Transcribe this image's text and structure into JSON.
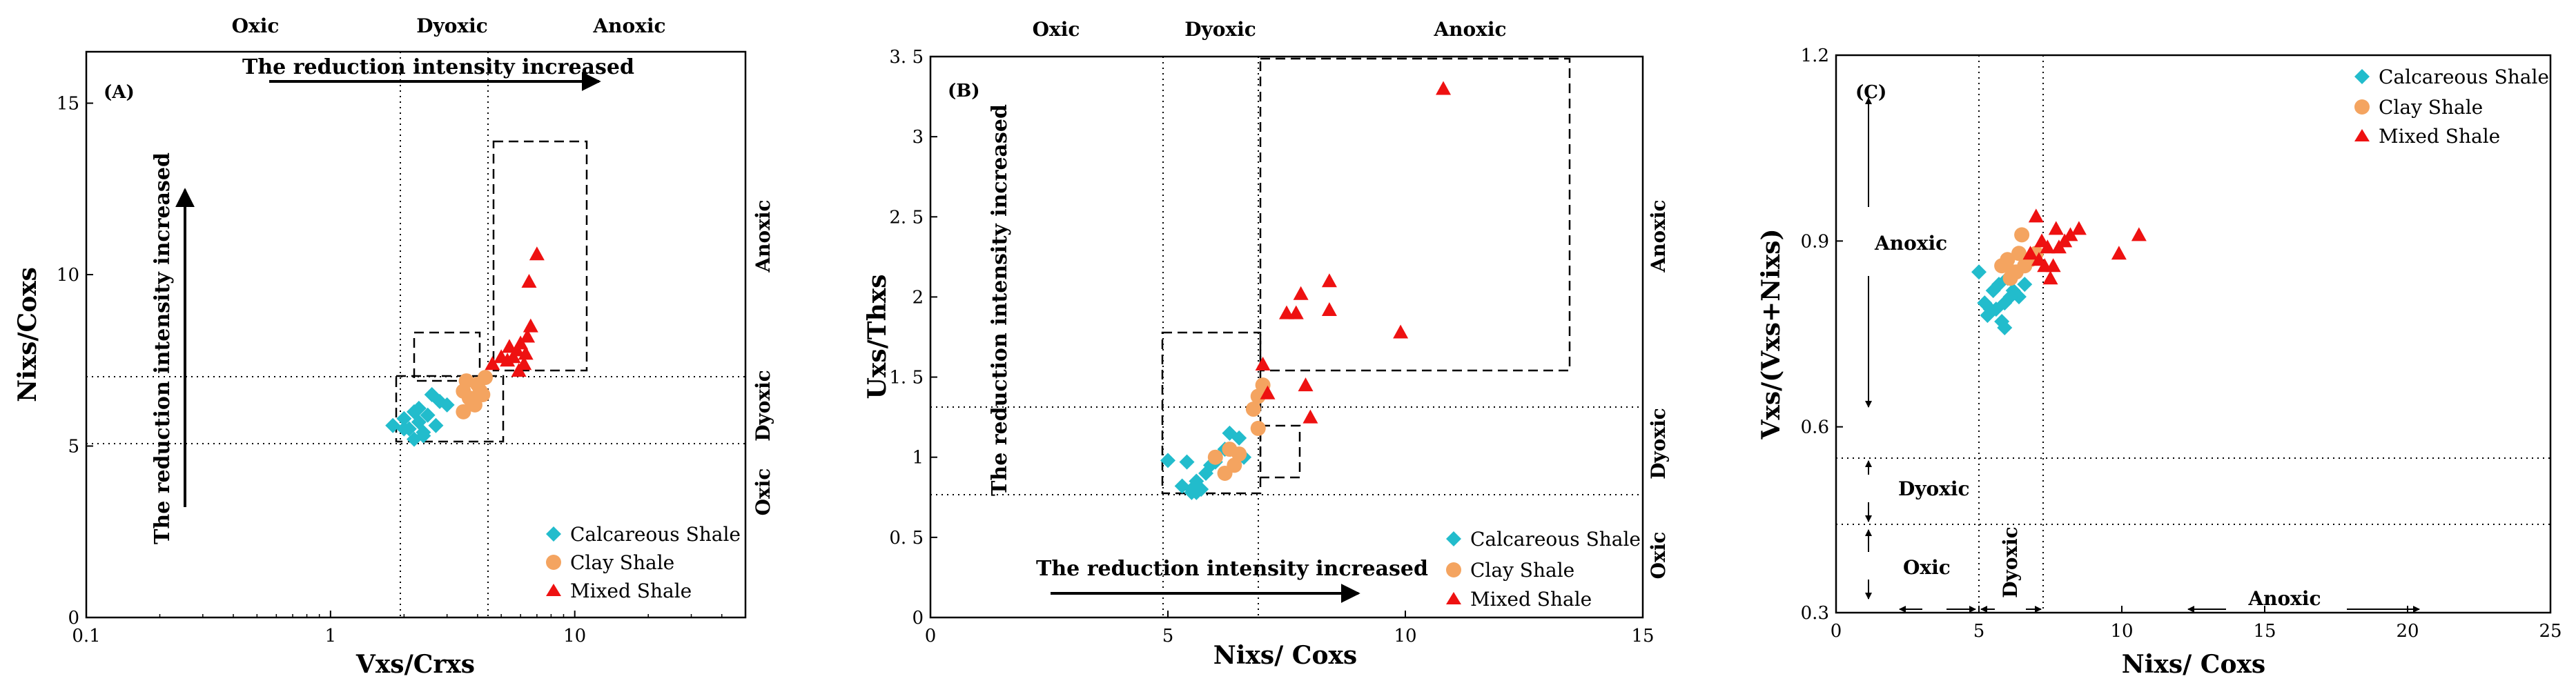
{
  "colors": {
    "calcareous": "#22bccc",
    "clay": "#f4a460",
    "mixed": "#ee1111",
    "frame": "#000000"
  },
  "chart_data": [
    {
      "type": "scatter",
      "panel_label": "(A)",
      "xscale": "log",
      "xlim": [
        0.1,
        50
      ],
      "ylim": [
        0,
        16.5
      ],
      "xlabel": "Vxs/Crxs",
      "ylabel": "Nixs/Coxs",
      "xticks": [
        0.1,
        1,
        10
      ],
      "xtick_labels": [
        "0.1",
        "1",
        "10"
      ],
      "yticks": [
        0,
        5,
        10,
        15
      ],
      "ytick_labels": [
        "0",
        "5",
        "10",
        "15"
      ],
      "top_zone_labels": [
        "Oxic",
        "Dyoxic",
        "Anoxic"
      ],
      "right_zone_labels": [
        "Anoxic",
        "Dyoxic",
        "Oxic"
      ],
      "arrow_text_horizontal": "The reduction intensity increased",
      "arrow_text_vertical": "The reduction intensity increased",
      "legend": [
        "Calcareous Shale",
        "Clay Shale",
        "Mixed Shale"
      ],
      "series": [
        {
          "name": "Calcareous Shale",
          "marker": "diamond",
          "x": [
            1.8,
            2.0,
            2.1,
            2.2,
            2.3,
            2.4,
            2.5,
            2.6,
            2.8,
            3.0,
            2.2,
            2.4,
            2.7,
            2.0,
            2.3
          ],
          "y": [
            5.6,
            5.8,
            5.5,
            6.0,
            5.7,
            5.4,
            5.9,
            6.5,
            6.3,
            6.2,
            5.2,
            5.3,
            5.6,
            5.5,
            6.1
          ]
        },
        {
          "name": "Clay Shale",
          "marker": "circle",
          "x": [
            3.5,
            3.8,
            4.0,
            4.2,
            3.6,
            3.9,
            4.1,
            3.7,
            4.3,
            3.5
          ],
          "y": [
            6.0,
            6.3,
            6.8,
            6.5,
            6.9,
            6.2,
            6.6,
            6.4,
            7.0,
            6.6
          ]
        },
        {
          "name": "Mixed Shale",
          "marker": "triangle",
          "x": [
            4.6,
            5.0,
            5.3,
            5.6,
            5.8,
            6.0,
            6.2,
            6.4,
            6.6,
            6.5,
            7.0,
            5.4,
            5.9,
            6.3
          ],
          "y": [
            7.4,
            7.6,
            7.5,
            7.6,
            7.8,
            8.0,
            7.4,
            8.2,
            8.5,
            9.8,
            10.6,
            7.9,
            7.2,
            7.7
          ]
        }
      ]
    },
    {
      "type": "scatter",
      "panel_label": "(B)",
      "xlim": [
        0,
        15
      ],
      "ylim": [
        0,
        3.5
      ],
      "xlabel": "Nixs/ Coxs",
      "ylabel": "Uxs/Thxs",
      "xticks": [
        0,
        5,
        10,
        15
      ],
      "xtick_labels": [
        "0",
        "5",
        "10",
        "15"
      ],
      "yticks": [
        0,
        0.5,
        1,
        1.5,
        2,
        2.5,
        3,
        3.5
      ],
      "ytick_labels": [
        "0",
        "0. 5",
        "1",
        "1. 5",
        "2",
        "2. 5",
        "3",
        "3. 5"
      ],
      "top_zone_labels": [
        "Oxic",
        "Dyoxic",
        "Anoxic"
      ],
      "right_zone_labels": [
        "Anoxic",
        "Dyoxic",
        "Oxic"
      ],
      "arrow_text_horizontal": "The reduction intensity increased",
      "arrow_text_vertical": "The reduction intensity increased",
      "legend": [
        "Calcareous Shale",
        "Clay Shale",
        "Mixed Shale"
      ],
      "series": [
        {
          "name": "Calcareous Shale",
          "marker": "diamond",
          "x": [
            5.0,
            5.3,
            5.4,
            5.5,
            5.6,
            5.7,
            5.8,
            5.9,
            6.0,
            6.2,
            6.3,
            6.5,
            6.6,
            5.6,
            5.5
          ],
          "y": [
            0.98,
            0.82,
            0.97,
            0.78,
            0.85,
            0.8,
            0.9,
            0.95,
            0.97,
            1.05,
            1.15,
            1.12,
            1.0,
            0.78,
            0.8
          ]
        },
        {
          "name": "Clay Shale",
          "marker": "circle",
          "x": [
            6.0,
            6.2,
            6.4,
            6.5,
            6.8,
            6.9,
            7.0,
            6.3,
            6.9
          ],
          "y": [
            1.0,
            0.9,
            0.95,
            1.02,
            1.3,
            1.18,
            1.45,
            1.05,
            1.38
          ]
        },
        {
          "name": "Mixed Shale",
          "marker": "triangle",
          "x": [
            7.0,
            7.1,
            7.5,
            7.7,
            7.9,
            8.0,
            8.4,
            8.4,
            9.9,
            10.8,
            7.8
          ],
          "y": [
            1.58,
            1.4,
            1.9,
            1.9,
            1.45,
            1.25,
            2.1,
            1.92,
            1.78,
            3.3,
            2.02
          ]
        }
      ]
    },
    {
      "type": "scatter",
      "panel_label": "(C)",
      "xlim": [
        0,
        25
      ],
      "ylim": [
        0.3,
        1.2
      ],
      "xlabel": "Nixs/ Coxs",
      "ylabel": "Vxs/(Vxs+Nixs)",
      "xticks": [
        0,
        5,
        10,
        15,
        20,
        25
      ],
      "xtick_labels": [
        "0",
        "5",
        "10",
        "15",
        "20",
        "25"
      ],
      "yticks": [
        0.3,
        0.6,
        0.9,
        1.2
      ],
      "ytick_labels": [
        "0.3",
        "0.6",
        "0.9",
        "1.2"
      ],
      "zone_labels": [
        "Anoxic",
        "Dyoxic",
        "Oxic",
        "Dyoxic",
        "Anoxic"
      ],
      "legend": [
        "Calcareous Shale",
        "Clay Shale",
        "Mixed Shale"
      ],
      "series": [
        {
          "name": "Calcareous Shale",
          "marker": "diamond",
          "x": [
            5.0,
            5.2,
            5.3,
            5.5,
            5.6,
            5.7,
            5.8,
            5.9,
            6.0,
            6.2,
            6.4,
            6.6,
            5.4,
            5.9,
            6.1
          ],
          "y": [
            0.85,
            0.8,
            0.78,
            0.82,
            0.79,
            0.83,
            0.77,
            0.8,
            0.84,
            0.82,
            0.81,
            0.83,
            0.79,
            0.76,
            0.81
          ]
        },
        {
          "name": "Clay Shale",
          "marker": "circle",
          "x": [
            5.8,
            6.0,
            6.2,
            6.4,
            6.5,
            6.6,
            6.8,
            7.0,
            6.3,
            6.1
          ],
          "y": [
            0.86,
            0.87,
            0.85,
            0.88,
            0.91,
            0.86,
            0.87,
            0.88,
            0.85,
            0.84
          ]
        },
        {
          "name": "Mixed Shale",
          "marker": "triangle",
          "x": [
            6.8,
            7.0,
            7.2,
            7.4,
            7.5,
            7.6,
            7.7,
            7.8,
            8.0,
            8.2,
            8.5,
            9.9,
            10.6,
            7.1,
            7.3
          ],
          "y": [
            0.88,
            0.94,
            0.9,
            0.89,
            0.84,
            0.86,
            0.92,
            0.89,
            0.9,
            0.91,
            0.92,
            0.88,
            0.91,
            0.87,
            0.86
          ]
        }
      ]
    }
  ]
}
